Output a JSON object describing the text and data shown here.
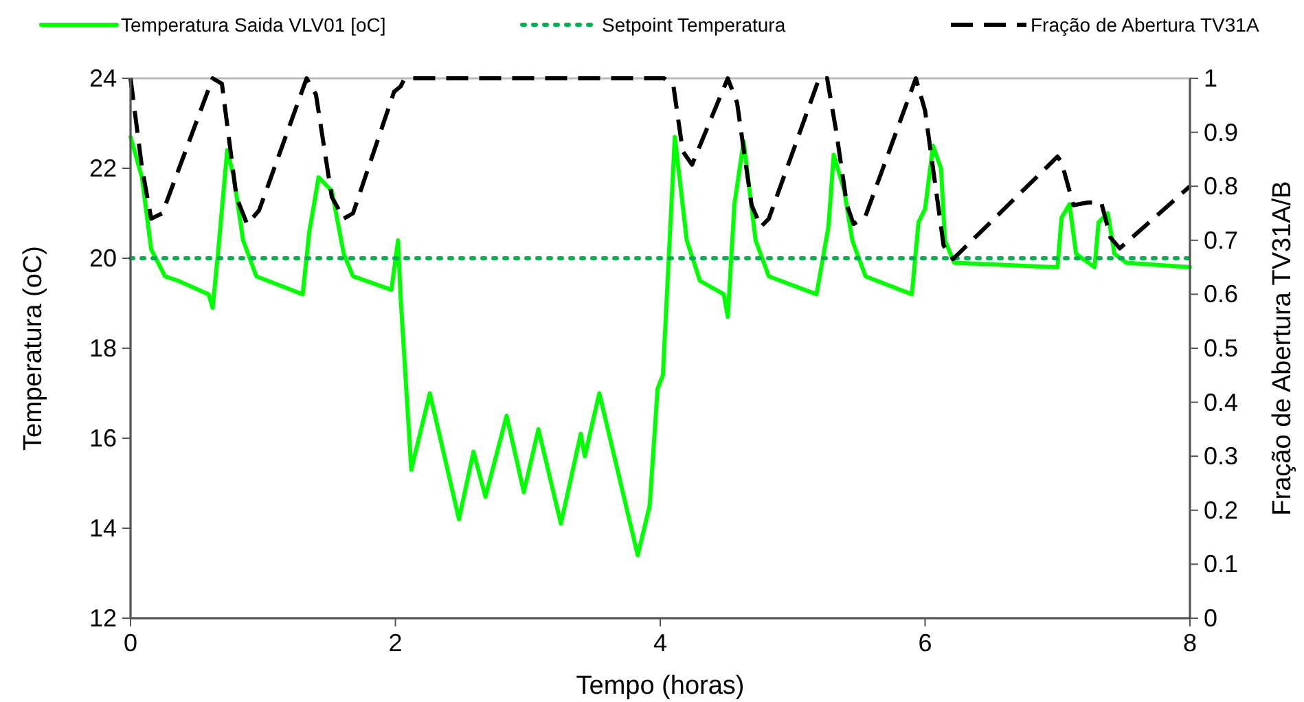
{
  "chart_data": {
    "type": "line",
    "xlabel": "Tempo (horas)",
    "ylabel": "Temperatura (oC)",
    "y2label": "Fração de Abertura TV31A/B",
    "xlim": [
      0,
      8
    ],
    "xticks": [
      0,
      2,
      4,
      6,
      8
    ],
    "ylim": [
      12,
      24
    ],
    "yticks": [
      12,
      14,
      16,
      18,
      20,
      22,
      24
    ],
    "y2lim": [
      0,
      1
    ],
    "y2ticks": [
      0,
      0.1,
      0.2,
      0.3,
      0.4,
      0.5,
      0.6,
      0.7,
      0.8,
      0.9,
      1
    ],
    "grid": false,
    "legend": "top",
    "marker": "none",
    "series": [
      {
        "name": "Temperatura Saida VLV01 [oC]",
        "color": "#00ff00",
        "line_style": "solid",
        "x": [
          0,
          0.086,
          0.156,
          0.26,
          0.36,
          0.59,
          0.62,
          0.66,
          0.73,
          0.78,
          0.85,
          0.95,
          1.3,
          1.35,
          1.38,
          1.42,
          1.52,
          1.61,
          1.68,
          1.97,
          2.02,
          2.04,
          2.12,
          2.26,
          2.48,
          2.59,
          2.68,
          2.84,
          2.97,
          3.08,
          3.25,
          3.4,
          3.43,
          3.54,
          3.83,
          3.92,
          3.98,
          4.02,
          4.11,
          4.2,
          4.3,
          4.48,
          4.51,
          4.56,
          4.63,
          4.72,
          4.82,
          5.18,
          5.27,
          5.31,
          5.39,
          5.45,
          5.55,
          5.9,
          5.95,
          6,
          6.06,
          6.12,
          6.15,
          6.22,
          7,
          7.03,
          7.09,
          7.14,
          7.28,
          7.31,
          7.38,
          7.43,
          7.52,
          8
        ],
        "values": [
          22.7,
          21.8,
          20.2,
          19.6,
          19.5,
          19.2,
          18.9,
          20.1,
          22.4,
          21.8,
          20.4,
          19.6,
          19.2,
          20.6,
          21.1,
          21.8,
          21.5,
          20.1,
          19.6,
          19.3,
          20.4,
          19.1,
          15.3,
          17,
          14.2,
          15.7,
          14.7,
          16.5,
          14.8,
          16.2,
          14.1,
          16.1,
          15.6,
          17,
          13.4,
          14.5,
          17.1,
          17.4,
          22.7,
          20.4,
          19.5,
          19.2,
          18.7,
          21.2,
          22.6,
          20.4,
          19.6,
          19.2,
          20.7,
          22.3,
          21.5,
          20.4,
          19.6,
          19.2,
          20.8,
          21.1,
          22.5,
          22,
          20.4,
          19.9,
          19.8,
          20.9,
          21.2,
          20.1,
          19.8,
          20.8,
          21,
          20.1,
          19.9,
          19.8
        ]
      },
      {
        "name": "Setpoint Temperatura",
        "color": "#00b050",
        "line_style": "dotted",
        "x": [
          0,
          8
        ],
        "values": [
          20,
          20
        ]
      },
      {
        "name": "Fração de Abertura TV31A",
        "color": "#000000",
        "line_style": "dashed",
        "axis": "y2",
        "x": [
          0,
          0.086,
          0.156,
          0.24,
          0.62,
          0.69,
          0.8,
          0.88,
          0.97,
          1.33,
          1.4,
          1.52,
          1.61,
          1.68,
          1.99,
          2.04,
          2.07,
          4.03,
          4.1,
          4.17,
          4.24,
          4.51,
          4.58,
          4.69,
          4.76,
          4.82,
          5.2,
          5.26,
          5.33,
          5.41,
          5.46,
          5.55,
          5.93,
          6,
          6.14,
          6.21,
          7,
          7.03,
          7.12,
          7.23,
          7.33,
          7.4,
          7.47,
          8
        ],
        "values": [
          1,
          0.835,
          0.74,
          0.75,
          1,
          0.99,
          0.78,
          0.73,
          0.755,
          1,
          0.97,
          0.78,
          0.74,
          0.75,
          0.975,
          0.985,
          1,
          1,
          0.985,
          0.865,
          0.84,
          1,
          0.955,
          0.765,
          0.725,
          0.74,
          1,
          1,
          0.9,
          0.765,
          0.73,
          0.745,
          1,
          0.94,
          0.69,
          0.665,
          0.855,
          0.845,
          0.765,
          0.77,
          0.77,
          0.705,
          0.685,
          0.8
        ]
      }
    ]
  }
}
